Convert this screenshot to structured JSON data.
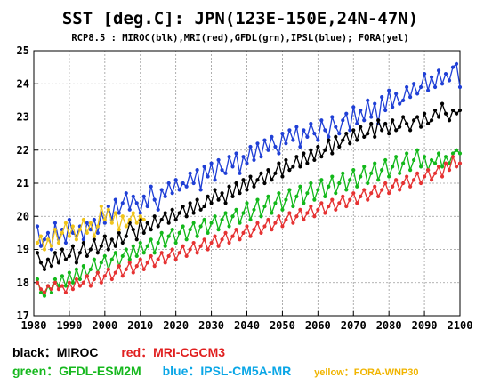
{
  "chart_data": {
    "type": "line",
    "title": "SST [deg.C]: JPN(123E-150E,24N-47N)",
    "subtitle": "RCP8.5 : MIROC(blk),MRI(red),GFDL(grn),IPSL(blue); FORA(yel)",
    "xlabel": "",
    "ylabel": "",
    "xlim": [
      1980,
      2100
    ],
    "ylim": [
      17,
      25
    ],
    "x_ticks": [
      1980,
      1990,
      2000,
      2010,
      2020,
      2030,
      2040,
      2050,
      2060,
      2070,
      2080,
      2090,
      2100
    ],
    "y_ticks": [
      17,
      18,
      19,
      20,
      21,
      22,
      23,
      24,
      25
    ],
    "grid": true,
    "series": [
      {
        "key": "blue",
        "color": "#1f3fd6",
        "x_start": 1981,
        "values": [
          19.7,
          19.1,
          19.3,
          19.5,
          19.0,
          19.8,
          19.3,
          19.6,
          19.2,
          19.9,
          19.5,
          19.4,
          19.7,
          19.3,
          19.8,
          19.6,
          19.9,
          19.5,
          20.1,
          19.8,
          20.3,
          19.9,
          20.5,
          20.1,
          20.4,
          20.7,
          20.2,
          20.6,
          20.4,
          20.1,
          20.6,
          20.3,
          20.9,
          20.5,
          20.2,
          20.8,
          20.6,
          21.0,
          20.7,
          21.1,
          20.8,
          21.0,
          20.9,
          21.3,
          21.0,
          21.4,
          20.8,
          21.5,
          21.2,
          21.6,
          21.1,
          21.7,
          21.4,
          21.3,
          21.8,
          21.5,
          21.9,
          21.3,
          21.8,
          21.6,
          22.1,
          21.7,
          22.2,
          21.8,
          22.3,
          22.0,
          22.4,
          22.1,
          21.9,
          22.5,
          22.2,
          22.6,
          22.3,
          22.7,
          22.1,
          22.6,
          22.4,
          22.8,
          22.5,
          22.3,
          22.9,
          22.6,
          22.4,
          23.0,
          22.7,
          22.5,
          22.9,
          23.1,
          22.6,
          23.3,
          22.8,
          23.2,
          22.9,
          23.5,
          23.0,
          23.4,
          22.8,
          23.6,
          23.2,
          23.8,
          23.3,
          23.7,
          23.4,
          23.5,
          23.9,
          23.6,
          24.0,
          23.7,
          23.9,
          24.3,
          23.8,
          24.2,
          23.9,
          24.4,
          24.0,
          24.3,
          24.1,
          24.5,
          24.6,
          23.9
        ]
      },
      {
        "key": "black",
        "color": "#000000",
        "x_start": 1981,
        "values": [
          18.9,
          18.6,
          18.4,
          18.7,
          18.5,
          18.9,
          18.6,
          19.0,
          18.7,
          18.8,
          19.1,
          18.6,
          18.9,
          19.2,
          18.8,
          19.0,
          19.3,
          18.9,
          19.1,
          19.4,
          19.0,
          19.3,
          19.1,
          19.5,
          19.2,
          19.4,
          19.8,
          19.6,
          19.3,
          19.9,
          19.5,
          19.8,
          19.6,
          20.0,
          19.7,
          19.9,
          20.1,
          19.8,
          20.2,
          19.9,
          20.1,
          20.3,
          20.0,
          20.4,
          20.1,
          20.5,
          20.2,
          20.3,
          20.6,
          20.4,
          20.8,
          20.5,
          20.7,
          20.4,
          20.9,
          20.6,
          21.0,
          20.7,
          21.1,
          20.8,
          21.2,
          20.9,
          21.1,
          21.3,
          21.0,
          21.4,
          21.1,
          21.3,
          21.6,
          21.2,
          21.7,
          21.4,
          21.5,
          21.8,
          21.5,
          21.9,
          21.6,
          22.0,
          21.7,
          22.1,
          21.8,
          22.0,
          22.3,
          21.9,
          22.4,
          22.1,
          22.3,
          22.5,
          22.2,
          22.6,
          22.3,
          22.7,
          22.4,
          22.5,
          22.8,
          22.4,
          22.9,
          22.6,
          22.8,
          22.5,
          22.9,
          22.6,
          22.7,
          23.0,
          22.8,
          22.6,
          22.9,
          23.0,
          22.7,
          23.1,
          22.8,
          22.9,
          23.2,
          23.0,
          23.4,
          23.1,
          22.9,
          23.2,
          23.1,
          23.2
        ]
      },
      {
        "key": "green",
        "color": "#12b81a",
        "x_start": 1981,
        "values": [
          18.1,
          17.7,
          17.6,
          17.9,
          17.7,
          18.1,
          17.9,
          18.2,
          17.9,
          18.3,
          18.0,
          18.4,
          18.1,
          18.5,
          18.2,
          18.4,
          18.7,
          18.3,
          18.6,
          18.8,
          18.4,
          18.7,
          18.9,
          18.5,
          18.8,
          19.0,
          18.7,
          19.1,
          18.8,
          19.2,
          18.9,
          19.1,
          19.3,
          18.9,
          19.2,
          19.5,
          19.1,
          19.4,
          19.6,
          19.2,
          19.5,
          19.7,
          19.3,
          19.6,
          19.8,
          19.4,
          19.7,
          19.9,
          19.5,
          19.8,
          20.0,
          19.6,
          19.9,
          20.1,
          19.7,
          20.0,
          20.2,
          19.8,
          20.1,
          20.4,
          19.9,
          20.2,
          20.5,
          20.0,
          20.3,
          20.6,
          20.1,
          20.4,
          20.7,
          20.2,
          20.5,
          20.8,
          20.3,
          20.6,
          20.9,
          20.4,
          20.7,
          21.0,
          20.5,
          20.8,
          21.1,
          20.6,
          20.9,
          21.2,
          20.7,
          21.0,
          21.3,
          20.8,
          21.1,
          21.4,
          20.9,
          21.2,
          21.5,
          21.0,
          21.3,
          21.6,
          21.1,
          21.4,
          21.7,
          21.2,
          21.5,
          21.8,
          21.3,
          21.6,
          21.9,
          21.4,
          21.7,
          22.0,
          21.5,
          21.8,
          21.4,
          21.7,
          21.6,
          21.9,
          21.5,
          21.8,
          21.6,
          21.9,
          22.0,
          21.9
        ]
      },
      {
        "key": "red",
        "color": "#e63232",
        "x_start": 1981,
        "values": [
          18.0,
          17.8,
          17.7,
          17.9,
          17.8,
          18.0,
          17.8,
          17.9,
          17.7,
          18.0,
          17.8,
          18.1,
          17.9,
          18.0,
          18.2,
          17.9,
          18.1,
          18.3,
          18.0,
          18.2,
          18.4,
          18.1,
          18.3,
          18.5,
          18.2,
          18.4,
          18.6,
          18.3,
          18.5,
          18.7,
          18.4,
          18.6,
          18.8,
          18.5,
          18.7,
          18.9,
          18.6,
          18.8,
          19.0,
          18.7,
          18.9,
          19.1,
          18.8,
          19.0,
          19.2,
          18.9,
          19.1,
          19.3,
          19.0,
          19.2,
          19.4,
          19.1,
          19.3,
          19.5,
          19.2,
          19.4,
          19.6,
          19.3,
          19.5,
          19.7,
          19.4,
          19.6,
          19.8,
          19.5,
          19.7,
          19.9,
          19.6,
          19.8,
          20.0,
          19.7,
          19.9,
          20.1,
          19.8,
          20.0,
          20.2,
          19.9,
          20.1,
          20.3,
          20.0,
          20.2,
          20.4,
          20.1,
          20.3,
          20.5,
          20.2,
          20.4,
          20.6,
          20.3,
          20.5,
          20.7,
          20.4,
          20.6,
          20.8,
          20.5,
          20.7,
          20.9,
          20.6,
          20.8,
          21.0,
          20.7,
          20.9,
          21.1,
          20.8,
          21.0,
          21.2,
          20.9,
          21.1,
          21.3,
          21.0,
          21.2,
          21.4,
          21.1,
          21.3,
          21.5,
          21.2,
          21.6,
          21.4,
          21.8,
          21.5,
          21.6
        ]
      },
      {
        "key": "yellow",
        "color": "#f0c419",
        "x_start": 1981,
        "values": [
          19.2,
          19.4,
          19.0,
          19.3,
          19.1,
          19.6,
          19.2,
          19.5,
          19.8,
          19.4,
          19.7,
          19.3,
          19.6,
          19.9,
          19.5,
          19.8,
          19.4,
          19.7,
          20.3,
          19.9,
          20.2,
          19.8,
          20.1,
          19.6,
          20.0,
          19.7,
          19.9,
          20.1,
          19.8,
          20.0,
          19.9
        ]
      }
    ],
    "legend": {
      "placement": "bottom",
      "rows": [
        [
          {
            "label": "black：MIROC",
            "color": "#000000"
          },
          {
            "label": "red：MRI-CGCM3",
            "color": "#e01e1e"
          }
        ],
        [
          {
            "label": "green：GFDL-ESM2M",
            "color": "#16b81e"
          },
          {
            "label": "blue：IPSL-CM5A-MR",
            "color": "#0aa6e6"
          },
          {
            "label": "yellow：FORA-WNP30",
            "color": "#f0b400"
          }
        ]
      ]
    }
  }
}
